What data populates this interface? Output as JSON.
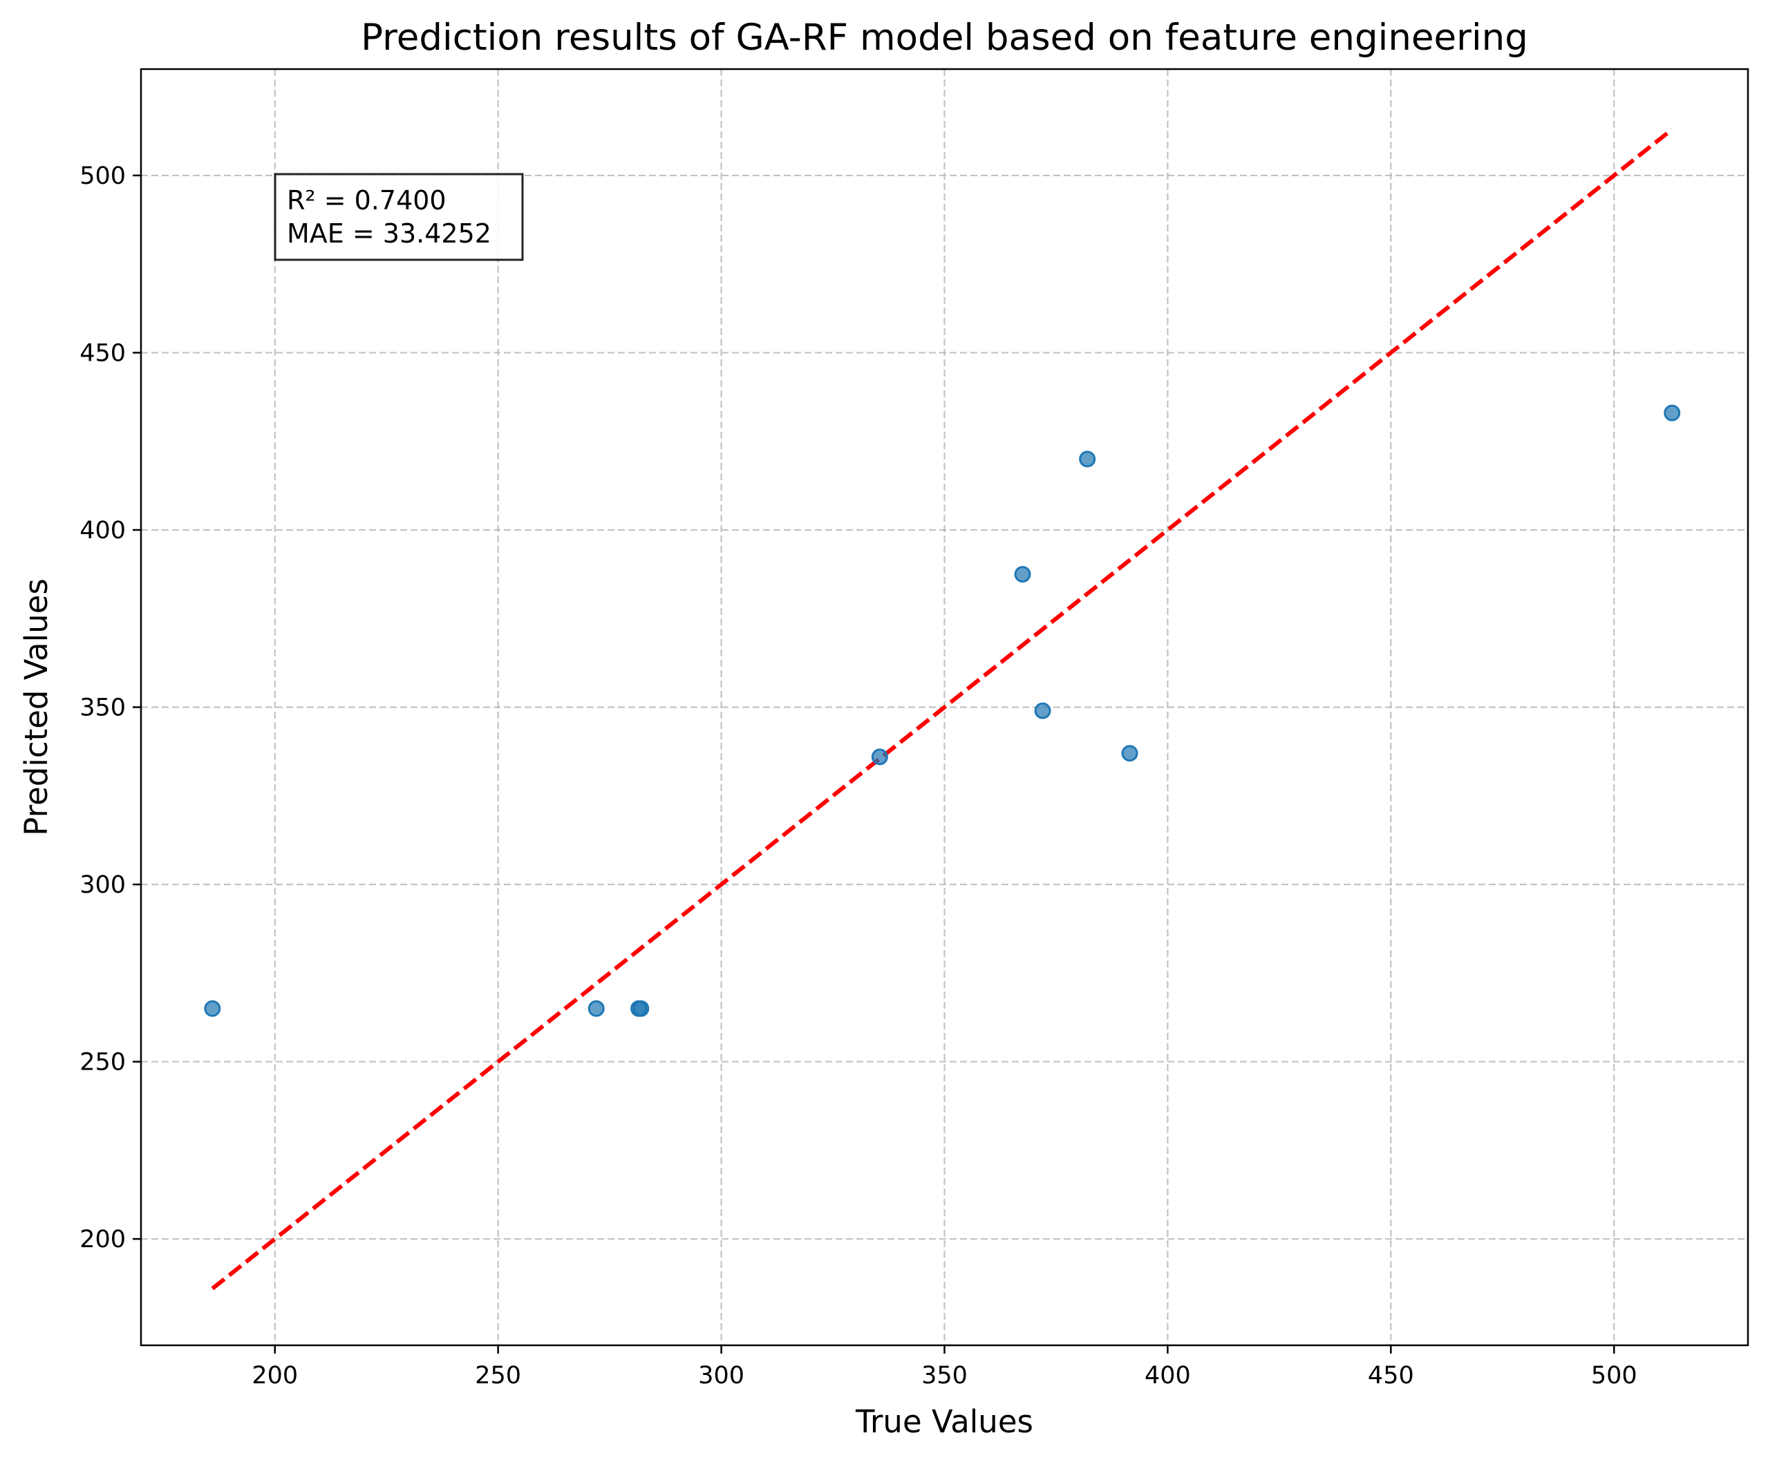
{
  "chart_data": {
    "type": "scatter",
    "title": "Prediction results of GA-RF model based on feature engineering",
    "xlabel": "True Values",
    "ylabel": "Predicted Values",
    "xlim": [
      170,
      530
    ],
    "ylim": [
      170,
      530
    ],
    "x_ticks": [
      200,
      250,
      300,
      350,
      400,
      450,
      500
    ],
    "y_ticks": [
      200,
      250,
      300,
      350,
      400,
      450,
      500
    ],
    "grid": true,
    "series": [
      {
        "color": "#1f77b4",
        "points": [
          {
            "x": 186,
            "y": 265
          },
          {
            "x": 272,
            "y": 265
          },
          {
            "x": 281.5,
            "y": 265
          },
          {
            "x": 282,
            "y": 265
          },
          {
            "x": 335.5,
            "y": 336
          },
          {
            "x": 367.5,
            "y": 387.5
          },
          {
            "x": 372,
            "y": 349
          },
          {
            "x": 382,
            "y": 420
          },
          {
            "x": 391.5,
            "y": 337
          },
          {
            "x": 513,
            "y": 433
          }
        ]
      }
    ],
    "reference_line": {
      "style": "dashed",
      "color": "#ff0000",
      "from": [
        186,
        186
      ],
      "to": [
        513,
        513
      ]
    },
    "annotation": {
      "lines": [
        "R² = 0.7400",
        "MAE = 33.4252"
      ],
      "position": "top-left"
    }
  }
}
